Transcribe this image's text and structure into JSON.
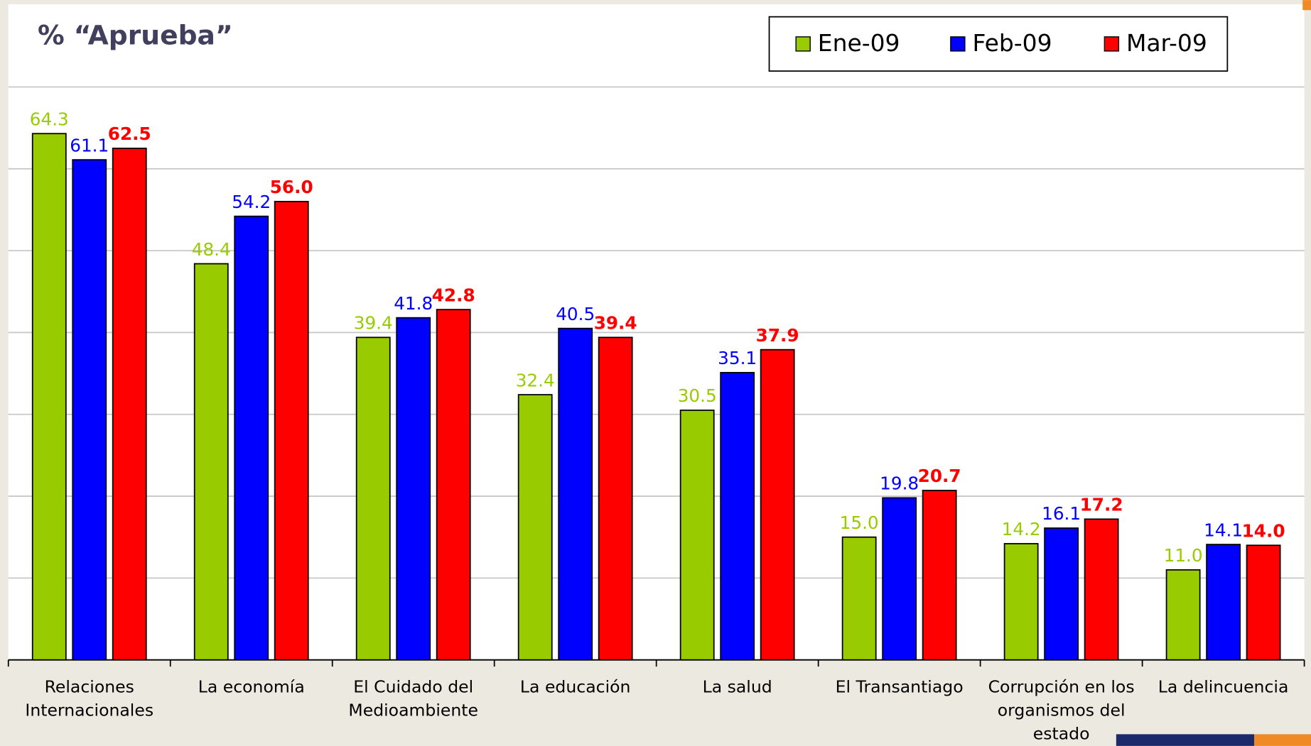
{
  "chart_data": {
    "type": "bar",
    "title": "% “Aprueba”",
    "categories": [
      "Relaciones Internacionales",
      "La economía",
      "El Cuidado del Medioambiente",
      "La educación",
      "La salud",
      "El Transantiago",
      "Corrupción en los organismos del estado",
      "La delincuencia"
    ],
    "series": [
      {
        "name": "Ene-09",
        "color": "#99cc00",
        "values": [
          64.3,
          48.4,
          39.4,
          32.4,
          30.5,
          15.0,
          14.2,
          11.0
        ],
        "value_labels": [
          "64.3",
          "48.4",
          "39.4",
          "32.4",
          "30.5",
          "15.0",
          "14.2",
          "11.0"
        ]
      },
      {
        "name": "Feb-09",
        "color": "#0000ff",
        "values": [
          61.1,
          54.2,
          41.8,
          40.5,
          35.1,
          19.8,
          16.1,
          14.1
        ],
        "value_labels": [
          "61.1",
          "54.2",
          "41.8",
          "40.5",
          "35.1",
          "19.8",
          "16.1",
          "14.1"
        ]
      },
      {
        "name": "Mar-09",
        "color": "#ff0000",
        "values": [
          62.5,
          56.0,
          42.8,
          39.4,
          37.9,
          20.7,
          17.2,
          14.0
        ],
        "value_labels": [
          "62.5",
          "56.0",
          "42.8",
          "39.4",
          "37.9",
          "20.7",
          "17.2",
          "14.0"
        ]
      }
    ],
    "ylim": [
      0,
      70
    ],
    "yticks": [
      0,
      10,
      20,
      30,
      40,
      50,
      60,
      70
    ],
    "grid": true,
    "legend": "top-right"
  }
}
